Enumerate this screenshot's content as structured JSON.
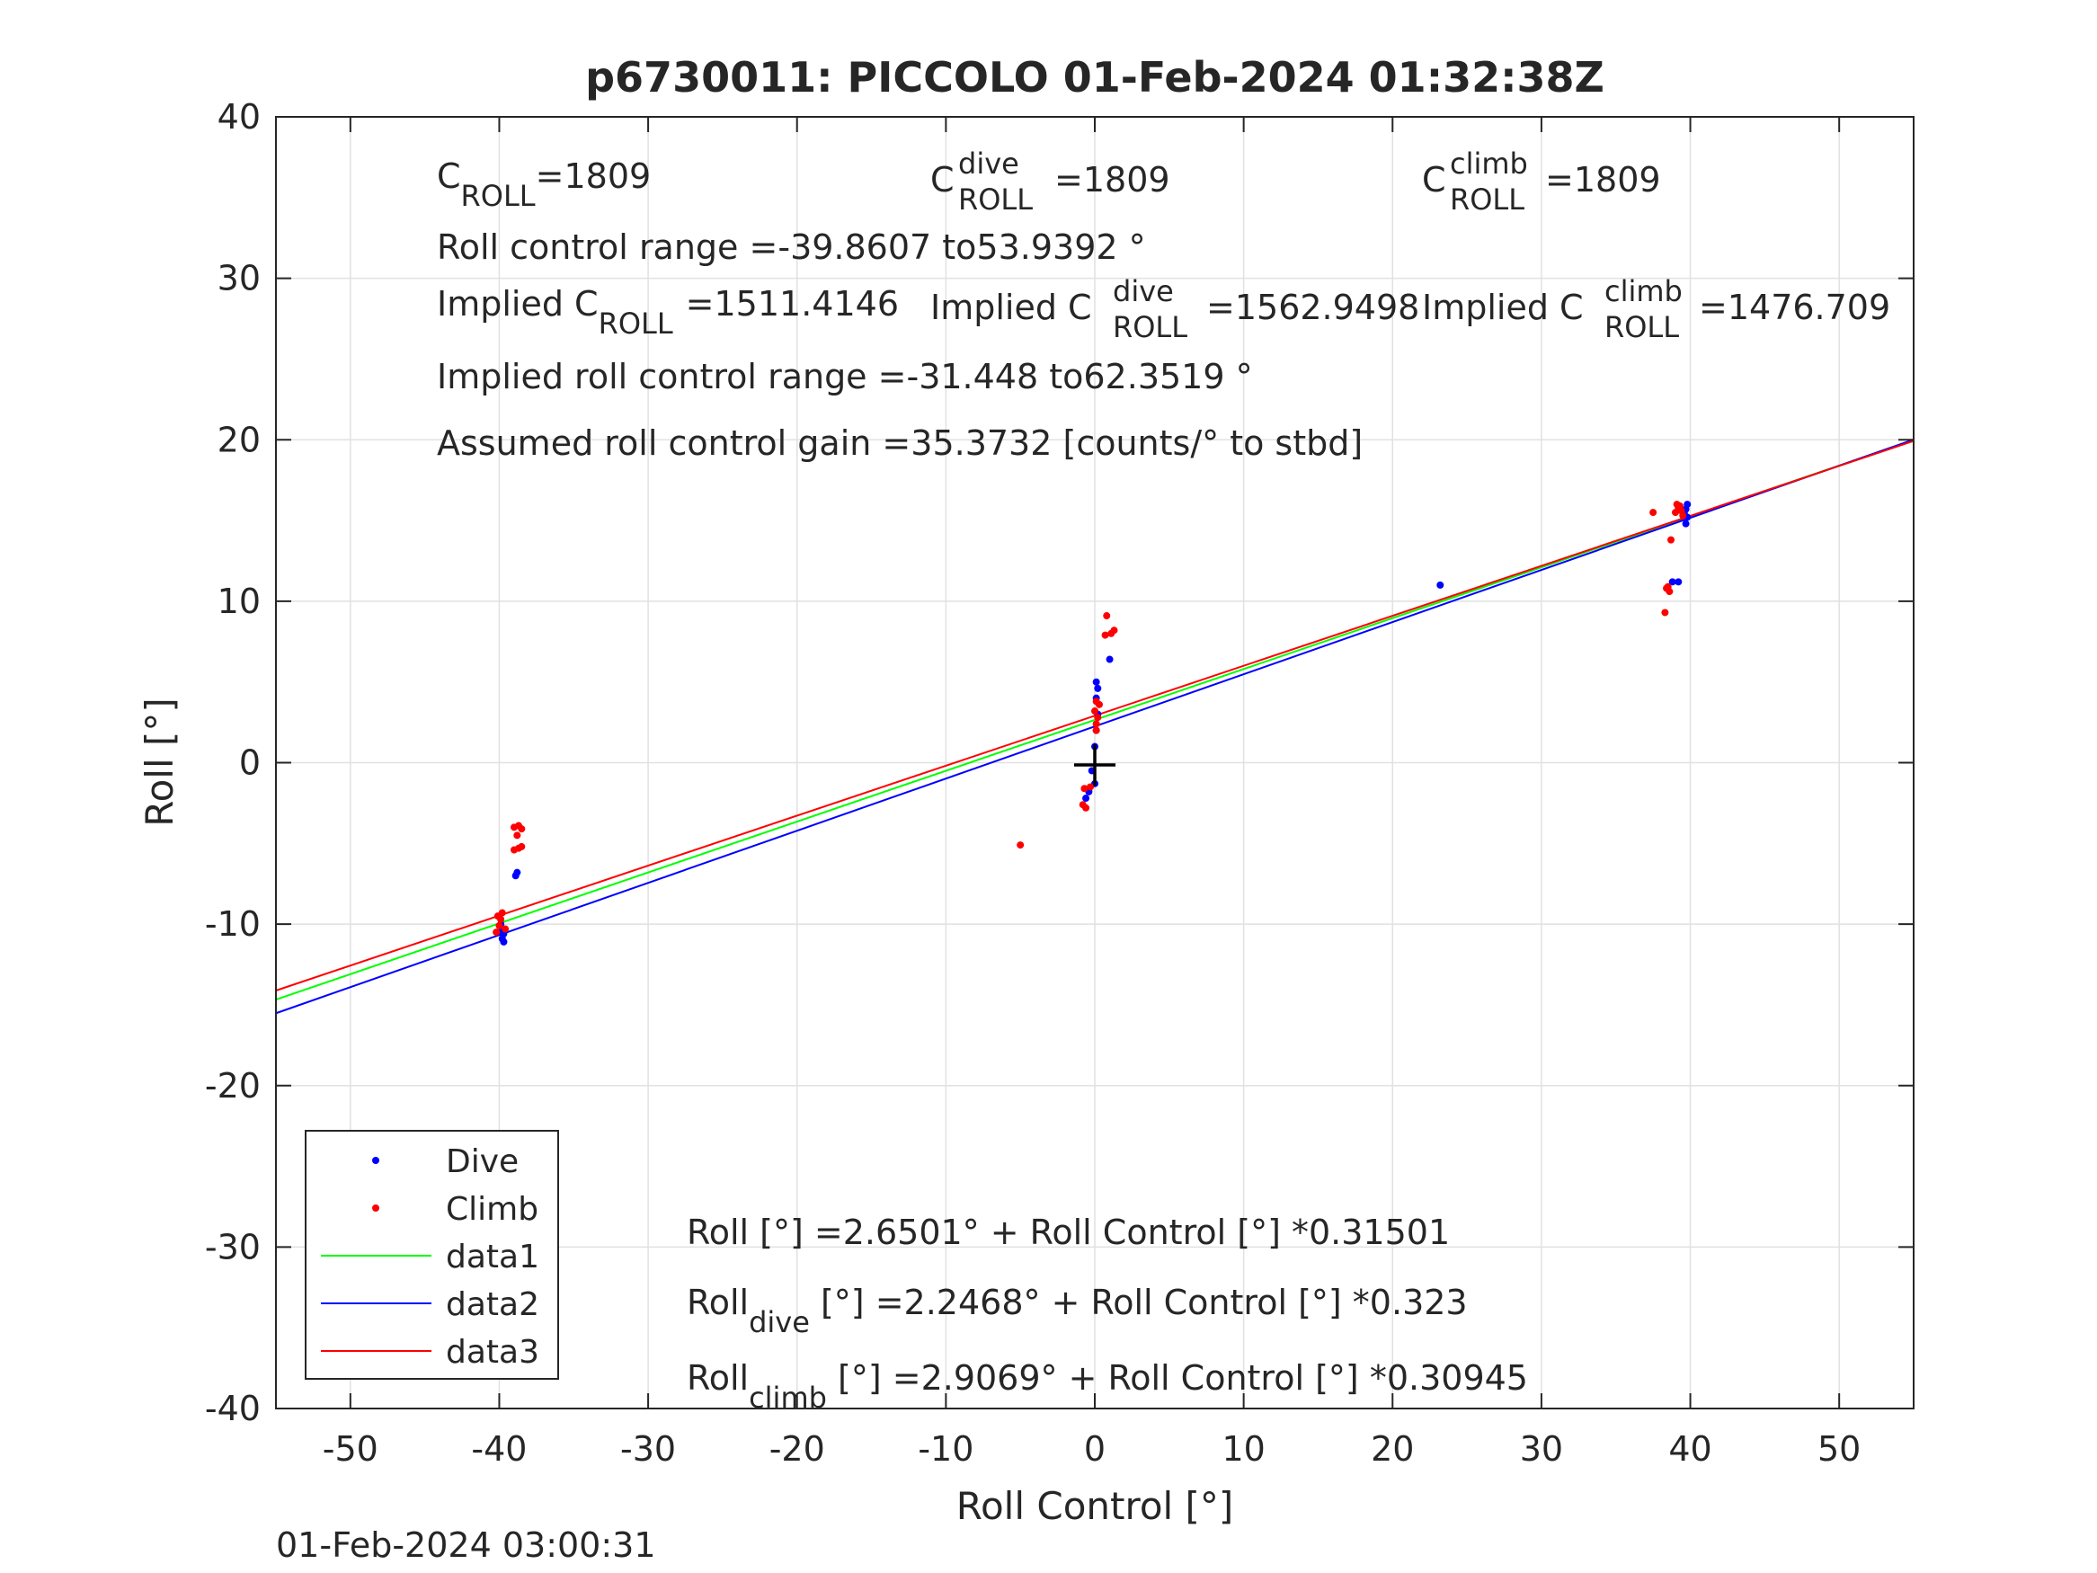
{
  "chart_data": {
    "type": "scatter",
    "title": "p6730011: PICCOLO 01-Feb-2024 01:32:38Z",
    "xlabel": "Roll Control [°]",
    "ylabel": "Roll [°]",
    "xlim": [
      -55,
      55
    ],
    "ylim": [
      -40,
      40
    ],
    "xticks": [
      -50,
      -40,
      -30,
      -20,
      -10,
      0,
      10,
      20,
      30,
      40,
      50
    ],
    "yticks": [
      -40,
      -30,
      -20,
      -10,
      0,
      10,
      20,
      30,
      40
    ],
    "xtick_labels": [
      "-50",
      "-40",
      "-30",
      "-20",
      "-10",
      "0",
      "10",
      "20",
      "30",
      "40",
      "50"
    ],
    "ytick_labels": [
      "-40",
      "-30",
      "-20",
      "-10",
      "0",
      "10",
      "20",
      "30",
      "40"
    ],
    "grid": true,
    "legend_position": "bottom-left",
    "timestamp": "01-Feb-2024 03:00:31",
    "center_marker": {
      "x": 0,
      "y": 0,
      "symbol": "+"
    },
    "series": [
      {
        "name": "Dive",
        "kind": "points",
        "color": "#0000ff",
        "points": [
          [
            -39.9,
            -10.0
          ],
          [
            -39.8,
            -10.3
          ],
          [
            -39.7,
            -10.6
          ],
          [
            -39.8,
            -10.9
          ],
          [
            -39.7,
            -11.1
          ],
          [
            -39.9,
            -10.5
          ],
          [
            -38.8,
            -6.8
          ],
          [
            -38.9,
            -7.0
          ],
          [
            -0.2,
            -0.5
          ],
          [
            0.0,
            -1.3
          ],
          [
            -0.4,
            -1.8
          ],
          [
            -0.6,
            -2.2
          ],
          [
            0.0,
            1.0
          ],
          [
            0.1,
            2.0
          ],
          [
            0.2,
            3.0
          ],
          [
            0.1,
            4.0
          ],
          [
            0.2,
            4.6
          ],
          [
            0.1,
            5.0
          ],
          [
            1.0,
            6.4
          ],
          [
            23.2,
            11.0
          ],
          [
            38.8,
            11.2
          ],
          [
            39.2,
            11.2
          ],
          [
            39.7,
            14.8
          ],
          [
            39.8,
            15.2
          ],
          [
            39.8,
            16.0
          ],
          [
            39.7,
            15.7
          ],
          [
            39.6,
            15.4
          ]
        ]
      },
      {
        "name": "Climb",
        "kind": "points",
        "color": "#ff0000",
        "points": [
          [
            -39.0,
            -4.0
          ],
          [
            -38.7,
            -3.9
          ],
          [
            -38.8,
            -4.5
          ],
          [
            -38.5,
            -4.1
          ],
          [
            -39.0,
            -5.4
          ],
          [
            -38.7,
            -5.3
          ],
          [
            -38.5,
            -5.2
          ],
          [
            -40.1,
            -9.5
          ],
          [
            -39.9,
            -9.7
          ],
          [
            -40.0,
            -10.1
          ],
          [
            -39.8,
            -9.3
          ],
          [
            -39.6,
            -10.3
          ],
          [
            -40.2,
            -10.5
          ],
          [
            -5.0,
            -5.1
          ],
          [
            -0.8,
            -2.6
          ],
          [
            -0.6,
            -2.8
          ],
          [
            -0.7,
            -1.6
          ],
          [
            -0.3,
            -1.5
          ],
          [
            0.1,
            2.0
          ],
          [
            0.1,
            2.4
          ],
          [
            0.2,
            2.8
          ],
          [
            0.0,
            3.2
          ],
          [
            0.3,
            3.6
          ],
          [
            0.1,
            3.8
          ],
          [
            0.7,
            7.9
          ],
          [
            1.1,
            8.0
          ],
          [
            1.3,
            8.2
          ],
          [
            0.8,
            9.1
          ],
          [
            37.5,
            15.5
          ],
          [
            38.4,
            10.8
          ],
          [
            38.6,
            10.6
          ],
          [
            38.5,
            10.9
          ],
          [
            38.3,
            9.3
          ],
          [
            38.7,
            13.8
          ],
          [
            39.0,
            15.5
          ],
          [
            39.2,
            15.8
          ],
          [
            39.4,
            15.6
          ],
          [
            39.1,
            16.0
          ],
          [
            39.5,
            15.3
          ],
          [
            39.3,
            15.9
          ]
        ]
      },
      {
        "name": "data1",
        "kind": "line",
        "color": "#00ff00",
        "intercept": 2.6501,
        "slope": 0.31501
      },
      {
        "name": "data2",
        "kind": "line",
        "color": "#0000ff",
        "intercept": 2.2468,
        "slope": 0.323
      },
      {
        "name": "data3",
        "kind": "line",
        "color": "#ff0000",
        "intercept": 2.9069,
        "slope": 0.30945
      }
    ],
    "annotations": {
      "c_roll": {
        "main": "C",
        "sub": "ROLL",
        "value": "=1809"
      },
      "c_roll_dive": {
        "main": "C",
        "sup": "dive",
        "sub": "ROLL",
        "value": "=1809"
      },
      "c_roll_climb": {
        "main": "C",
        "sup": "climb",
        "sub": "ROLL",
        "value": "=1809"
      },
      "roll_control_range": "Roll control range =-39.8607 to53.9392 °",
      "implied_c_roll": {
        "prefix": "Implied C",
        "sub": "ROLL",
        "value": "=1511.4146"
      },
      "implied_c_roll_dive": {
        "prefix": "Implied C",
        "sup": "dive",
        "sub": "ROLL",
        "value": "=1562.9498"
      },
      "implied_c_roll_climb": {
        "prefix": "Implied C",
        "sup": "climb",
        "sub": "ROLL",
        "value": "=1476.709"
      },
      "implied_roll_control_range": "Implied roll control range =-31.448 to62.3519 °",
      "assumed_gain": "Assumed roll control gain =35.3732 [counts/° to stbd]",
      "fit_all": "Roll [°] =2.6501° + Roll Control [°] *0.31501",
      "fit_dive": {
        "main": "Roll",
        "sub": "dive",
        "rest": " [°] =2.2468° + Roll Control [°] *0.323"
      },
      "fit_climb": {
        "main": "Roll",
        "sub": "climb",
        "rest": " [°] =2.9069° + Roll Control [°] *0.30945"
      }
    }
  }
}
